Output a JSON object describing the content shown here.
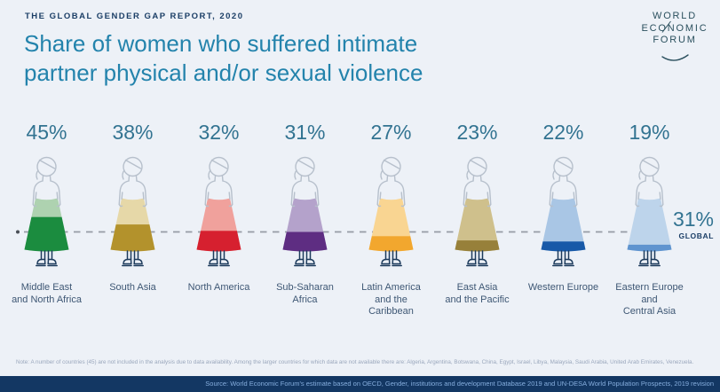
{
  "header": {
    "kicker": "THE GLOBAL GENDER GAP REPORT, 2020",
    "title_line1": "Share of women who suffered intimate",
    "title_line2": "partner physical and/or sexual violence"
  },
  "logo": {
    "line1": "WORLD",
    "line2": "ECONOMIC",
    "line3": "FORUM"
  },
  "chart_data": {
    "type": "bar",
    "title": "Share of women who suffered intimate partner physical and/or sexual violence",
    "unit": "percent",
    "categories": [
      "Middle East and North Africa",
      "South Asia",
      "North America",
      "Sub-Saharan Africa",
      "Latin America and the Caribbean",
      "East Asia and the Pacific",
      "Western Europe",
      "Eastern Europe and Central Asia"
    ],
    "values": [
      45,
      38,
      32,
      31,
      27,
      23,
      22,
      19
    ],
    "global_reference": {
      "value": 31,
      "label": "GLOBAL"
    },
    "legend_position": "right",
    "regions": [
      {
        "label_lines": [
          "Middle East",
          "and North Africa"
        ],
        "pct": 45,
        "dark": "#1b8c3f",
        "light": "#aed2b0"
      },
      {
        "label_lines": [
          "South Asia"
        ],
        "pct": 38,
        "dark": "#b3922c",
        "light": "#e6d8a8"
      },
      {
        "label_lines": [
          "North America"
        ],
        "pct": 32,
        "dark": "#d6202f",
        "light": "#f0a19c"
      },
      {
        "label_lines": [
          "Sub-Saharan",
          "Africa"
        ],
        "pct": 31,
        "dark": "#5e2d82",
        "light": "#b4a2cb"
      },
      {
        "label_lines": [
          "Latin America",
          "and the",
          "Caribbean"
        ],
        "pct": 27,
        "dark": "#f2a72e",
        "light": "#f9d592"
      },
      {
        "label_lines": [
          "East Asia",
          "and the Pacific"
        ],
        "pct": 23,
        "dark": "#97803a",
        "light": "#cfc08c"
      },
      {
        "label_lines": [
          "Western Europe"
        ],
        "pct": 22,
        "dark": "#1759a8",
        "light": "#a9c6e5"
      },
      {
        "label_lines": [
          "Eastern Europe",
          "and",
          "Central Asia"
        ],
        "pct": 19,
        "dark": "#5f94cf",
        "light": "#bdd4eb"
      }
    ]
  },
  "colors": {
    "background": "#edf1f7",
    "title": "#2383ac",
    "kicker_navy": "#1b3e66",
    "value_teal": "#327391",
    "region_label": "#3e5774",
    "figure_outline": "#b7c0cc",
    "legs_navy": "#1d3b5c",
    "dashed_line": "#979ca6",
    "source_bar_bg": "#133763",
    "source_bar_text": "#86aede"
  },
  "footnote": "Note: A number of countries (45) are not included in the analysis due to data availability. Among the larger countries for which data are not available there are: Algeria, Argentina, Botswana, China, Egypt, Israel, Libya, Malaysia, Saudi Arabia, United Arab Emirates, Venezuela.",
  "source": "Source: World Economic Forum's estimate based on OECD, Gender, institutions and development Database 2019 and UN-DESA World Population Prospects, 2019 revision"
}
